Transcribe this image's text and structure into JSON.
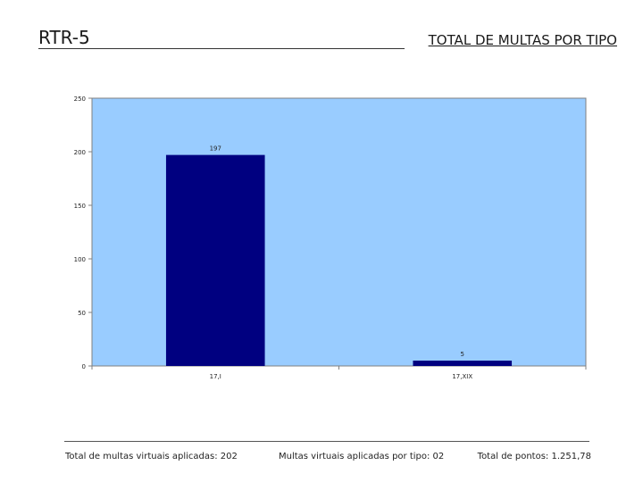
{
  "header": {
    "code": "RTR-5",
    "title": "TOTAL DE MULTAS POR TIPO"
  },
  "chart_data": {
    "type": "bar",
    "categories": [
      "17,I",
      "17,XIX"
    ],
    "values": [
      197,
      5
    ],
    "data_labels": [
      "197",
      "5"
    ],
    "title": "",
    "xlabel": "",
    "ylabel": "",
    "ylim": [
      0,
      250
    ],
    "yticks": [
      0,
      50,
      100,
      150,
      200,
      250
    ],
    "grid": false,
    "legend": "none",
    "colors": {
      "plot_background": "#99ccff",
      "bar": "#000080",
      "axis": "#808080"
    }
  },
  "footer": {
    "total_virtual": "Total de multas virtuais aplicadas: 202",
    "per_type": "Multas virtuais aplicadas por tipo: 02",
    "points": "Total de pontos: 1.251,78"
  }
}
